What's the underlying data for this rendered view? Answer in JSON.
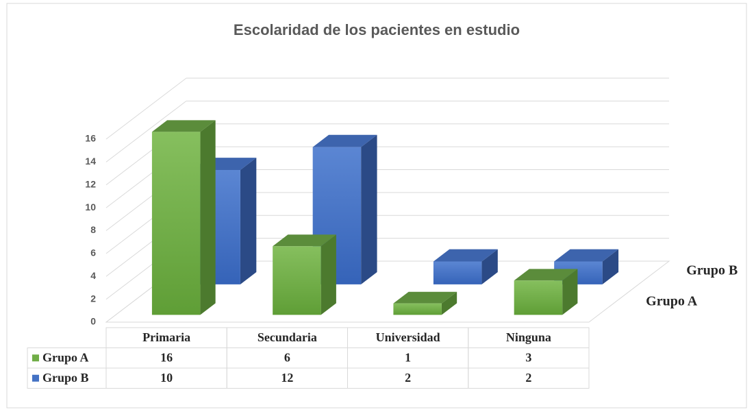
{
  "chart_data": {
    "type": "bar",
    "title": "Escolaridad de los pacientes en estudio",
    "categories": [
      "Primaria",
      "Secundaria",
      "Universidad",
      "Ninguna"
    ],
    "series": [
      {
        "name": "Grupo A",
        "color": "#70ad47",
        "values": [
          16,
          6,
          1,
          3
        ]
      },
      {
        "name": "Grupo B",
        "color": "#4472c4",
        "values": [
          10,
          12,
          2,
          2
        ]
      }
    ],
    "ylim": [
      0,
      16
    ],
    "yticks": [
      0,
      2,
      4,
      6,
      8,
      10,
      12,
      14,
      16
    ],
    "grid": true
  }
}
